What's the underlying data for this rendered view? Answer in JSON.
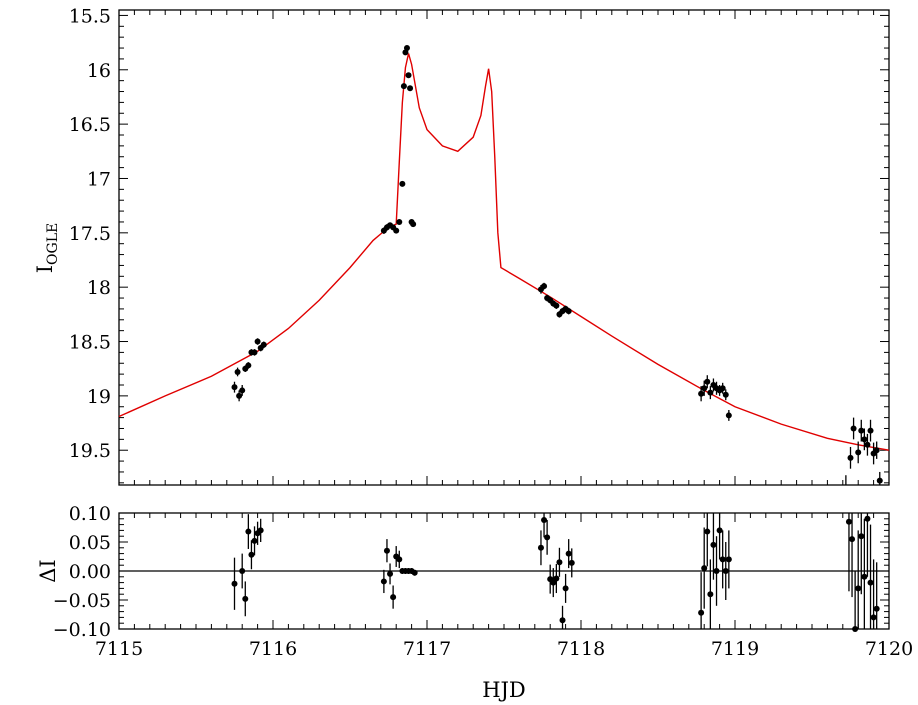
{
  "chart_data": [
    {
      "panel": "main",
      "type": "scatter",
      "ylabel": "I",
      "ylabel_sub": "OGLE",
      "xlim": [
        7115,
        7120
      ],
      "ylim": [
        15.45,
        19.82
      ],
      "y_inverted": true,
      "xticks": [
        7115,
        7116,
        7117,
        7118,
        7119,
        7120
      ],
      "yticks": [
        "15.5",
        "16",
        "16.5",
        "17",
        "17.5",
        "18",
        "18.5",
        "19",
        "19.5"
      ],
      "model_color": "#e00000",
      "point_color": "#000000",
      "model": {
        "name": "",
        "x": [
          7115.0,
          7115.3,
          7115.6,
          7115.9,
          7116.1,
          7116.3,
          7116.5,
          7116.65,
          7116.75,
          7116.8,
          7116.82,
          7116.84,
          7116.86,
          7116.88,
          7116.9,
          7116.95,
          7117.0,
          7117.1,
          7117.2,
          7117.3,
          7117.35,
          7117.38,
          7117.4,
          7117.42,
          7117.44,
          7117.46,
          7117.48,
          7117.6,
          7117.8,
          7118.0,
          7118.2,
          7118.5,
          7118.8,
          7119.0,
          7119.3,
          7119.6,
          7119.8,
          7120.0
        ],
        "y": [
          19.19,
          19.0,
          18.82,
          18.59,
          18.38,
          18.12,
          17.82,
          17.57,
          17.45,
          17.42,
          16.85,
          16.3,
          15.98,
          15.85,
          15.95,
          16.35,
          16.55,
          16.7,
          16.75,
          16.62,
          16.42,
          16.15,
          15.99,
          16.2,
          16.8,
          17.5,
          17.82,
          17.92,
          18.09,
          18.27,
          18.45,
          18.71,
          18.95,
          19.1,
          19.26,
          19.39,
          19.45,
          19.5
        ]
      },
      "points": {
        "x": [
          7115.75,
          7115.77,
          7115.78,
          7115.8,
          7115.82,
          7115.84,
          7115.86,
          7115.88,
          7115.9,
          7115.92,
          7115.94,
          7116.72,
          7116.74,
          7116.76,
          7116.78,
          7116.8,
          7116.82,
          7116.84,
          7116.85,
          7116.86,
          7116.87,
          7116.88,
          7116.89,
          7116.9,
          7116.91,
          7117.74,
          7117.76,
          7117.78,
          7117.8,
          7117.82,
          7117.84,
          7117.86,
          7117.88,
          7117.9,
          7117.92,
          7118.78,
          7118.8,
          7118.82,
          7118.84,
          7118.86,
          7118.88,
          7118.9,
          7118.92,
          7118.94,
          7118.96,
          7119.72,
          7119.75,
          7119.77,
          7119.8,
          7119.82,
          7119.84,
          7119.86,
          7119.88,
          7119.9,
          7119.92,
          7119.94
        ],
        "y": [
          18.92,
          18.78,
          19.0,
          18.95,
          18.75,
          18.72,
          18.6,
          18.6,
          18.5,
          18.56,
          18.53,
          17.48,
          17.45,
          17.43,
          17.45,
          17.48,
          17.4,
          17.05,
          16.15,
          15.84,
          15.8,
          16.05,
          16.17,
          17.4,
          17.42,
          18.02,
          17.99,
          18.1,
          18.12,
          18.15,
          18.17,
          18.25,
          18.22,
          18.2,
          18.22,
          18.98,
          18.93,
          18.87,
          18.97,
          18.9,
          18.93,
          18.95,
          18.93,
          18.99,
          19.18,
          19.85,
          19.57,
          19.3,
          19.52,
          19.32,
          19.4,
          19.45,
          19.32,
          19.53,
          19.5,
          19.78
        ],
        "err": [
          0.05,
          0.04,
          0.05,
          0.05,
          0.03,
          0.03,
          0.03,
          0.03,
          0.03,
          0.03,
          0.03,
          0.03,
          0.03,
          0.02,
          0.02,
          0.02,
          0.02,
          0.02,
          0.02,
          0.01,
          0.01,
          0.01,
          0.01,
          0.02,
          0.02,
          0.04,
          0.03,
          0.03,
          0.03,
          0.03,
          0.03,
          0.03,
          0.03,
          0.03,
          0.03,
          0.07,
          0.07,
          0.06,
          0.06,
          0.06,
          0.06,
          0.05,
          0.05,
          0.05,
          0.05,
          0.12,
          0.1,
          0.1,
          0.1,
          0.1,
          0.1,
          0.1,
          0.1,
          0.1,
          0.08,
          0.08
        ]
      }
    },
    {
      "panel": "residuals",
      "type": "scatter",
      "ylabel": "ΔI",
      "xlabel": "HJD",
      "xlim": [
        7115,
        7120
      ],
      "ylim": [
        -0.1,
        0.1
      ],
      "xticks": [
        "7115",
        "7116",
        "7117",
        "7118",
        "7119",
        "7120"
      ],
      "yticks": [
        "−0.10",
        "−0.05",
        "0.00",
        "0.05",
        "0.10"
      ],
      "zero_line": 0,
      "points": {
        "x": [
          7115.75,
          7115.8,
          7115.82,
          7115.84,
          7115.86,
          7115.88,
          7115.9,
          7115.92,
          7116.72,
          7116.74,
          7116.76,
          7116.78,
          7116.8,
          7116.82,
          7116.84,
          7116.86,
          7116.88,
          7116.9,
          7116.92,
          7117.74,
          7117.76,
          7117.78,
          7117.8,
          7117.82,
          7117.84,
          7117.86,
          7117.88,
          7117.9,
          7117.92,
          7117.94,
          7118.78,
          7118.8,
          7118.82,
          7118.84,
          7118.86,
          7118.88,
          7118.9,
          7118.92,
          7118.94,
          7118.96,
          7119.74,
          7119.76,
          7119.78,
          7119.8,
          7119.82,
          7119.84,
          7119.86,
          7119.88,
          7119.9,
          7119.92
        ],
        "y": [
          -0.022,
          0.0,
          -0.048,
          0.068,
          0.028,
          0.052,
          0.065,
          0.07,
          -0.018,
          0.035,
          -0.005,
          -0.045,
          0.025,
          0.02,
          0.0,
          0.0,
          0.0,
          0.0,
          -0.003,
          0.04,
          0.088,
          0.058,
          -0.014,
          -0.02,
          -0.013,
          0.015,
          -0.085,
          -0.03,
          0.03,
          0.014,
          -0.072,
          0.005,
          0.068,
          -0.04,
          0.045,
          0.0,
          0.07,
          0.02,
          0.0,
          0.02,
          0.085,
          0.055,
          -0.1,
          -0.03,
          0.06,
          -0.01,
          0.09,
          -0.02,
          -0.08,
          -0.065
        ],
        "err": [
          0.045,
          0.03,
          0.03,
          0.03,
          0.025,
          0.025,
          0.02,
          0.02,
          0.02,
          0.02,
          0.018,
          0.02,
          0.018,
          0.015,
          0.005,
          0.005,
          0.005,
          0.005,
          0.005,
          0.03,
          0.03,
          0.03,
          0.025,
          0.025,
          0.025,
          0.025,
          0.025,
          0.025,
          0.025,
          0.025,
          0.07,
          0.07,
          0.06,
          0.06,
          0.06,
          0.06,
          0.05,
          0.05,
          0.05,
          0.05,
          0.12,
          0.1,
          0.1,
          0.1,
          0.1,
          0.1,
          0.1,
          0.1,
          0.1,
          0.08
        ]
      }
    }
  ]
}
